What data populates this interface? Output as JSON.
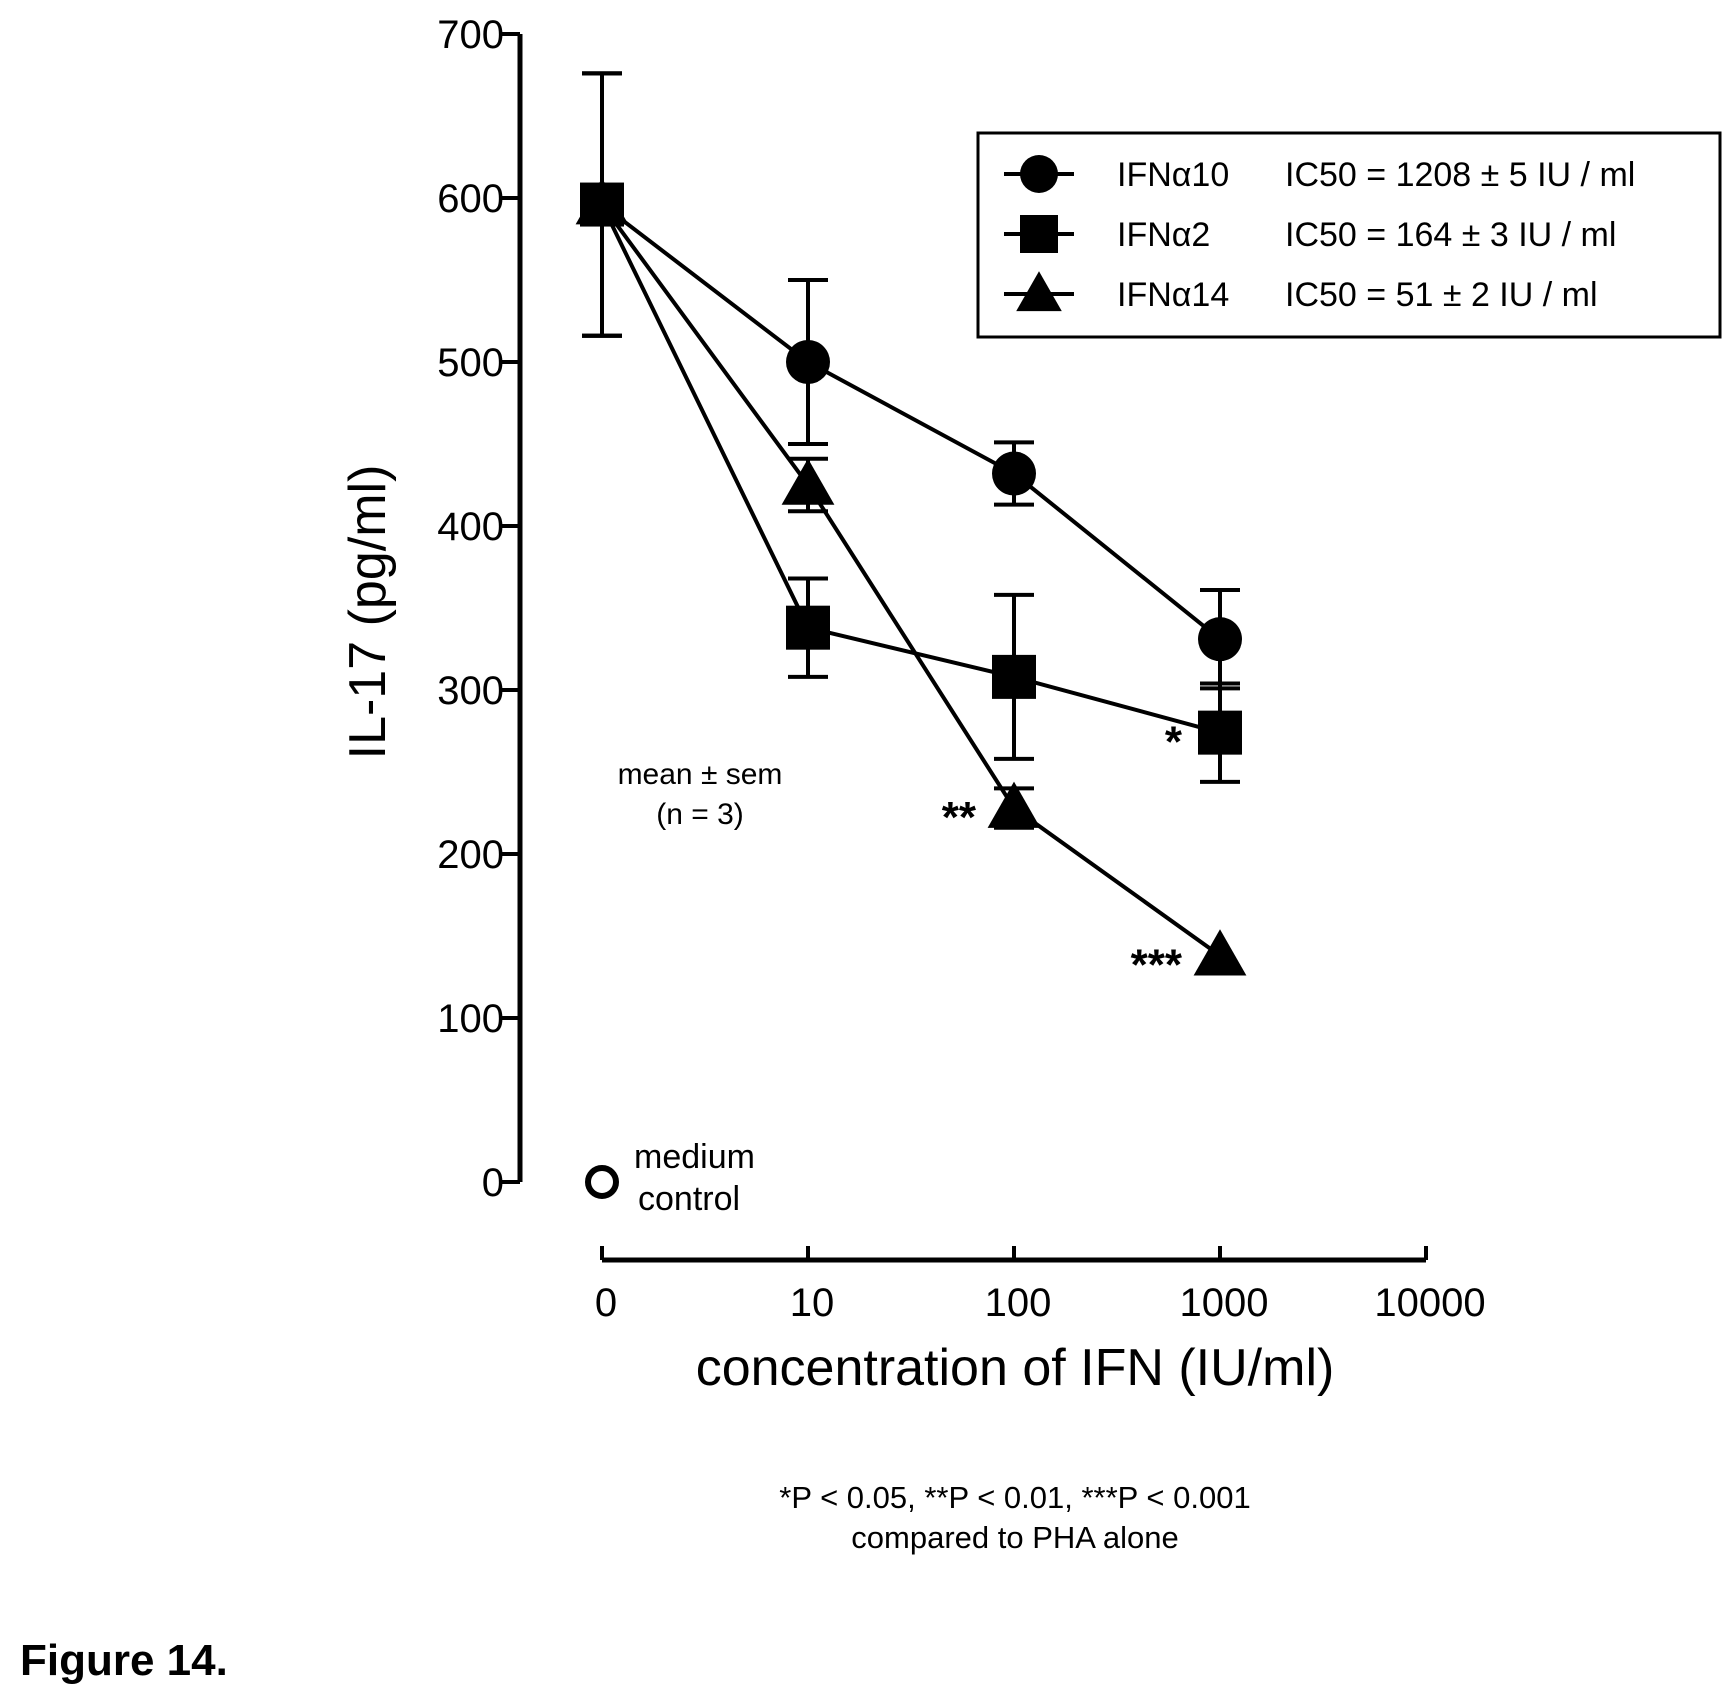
{
  "chart_data": {
    "type": "line",
    "ylabel": "IL-17 (pg/ml)",
    "xlabel": "concentration of IFN (IU/ml)",
    "x_scale": "log",
    "ylim": [
      0,
      700
    ],
    "x_ticks": [
      "0",
      "10",
      "100",
      "1000",
      "10000"
    ],
    "y_ticks": [
      "0",
      "100",
      "200",
      "300",
      "400",
      "500",
      "600",
      "700"
    ],
    "x_values": [
      0,
      10,
      100,
      1000
    ],
    "series": [
      {
        "name": "IFNα10",
        "ic50": "IC50 = 1208 ± 5 IU / ml",
        "marker": "circle",
        "values": [
          596,
          500,
          432,
          331
        ],
        "errors": [
          80,
          50,
          19,
          30
        ]
      },
      {
        "name": "IFNα2",
        "ic50": "IC50 = 164 ± 3 IU / ml",
        "marker": "square",
        "values": [
          596,
          338,
          308,
          274
        ],
        "errors": [
          80,
          30,
          50,
          30
        ]
      },
      {
        "name": "IFNα14",
        "ic50": "IC50 = 51 ± 2 IU / ml",
        "marker": "triangle",
        "values": [
          596,
          425,
          228,
          138
        ],
        "errors": [
          80,
          16,
          12,
          0
        ]
      }
    ],
    "control": {
      "label_line1": "medium",
      "label_line2": "control",
      "value": 0
    },
    "significance": [
      {
        "series": "IFNα2",
        "x": 1000,
        "label": "*"
      },
      {
        "series": "IFNα14",
        "x": 100,
        "label": "**"
      },
      {
        "series": "IFNα14",
        "x": 1000,
        "label": "***"
      }
    ],
    "annotation": {
      "line1": "mean ± sem",
      "line2": "(n = 3)"
    },
    "legend_position": "top-right",
    "grid": false
  },
  "footnote": {
    "line1": "*P < 0.05, **P < 0.01, ***P < 0.001",
    "line2": "compared to PHA alone"
  },
  "figure_caption": "Figure 14."
}
